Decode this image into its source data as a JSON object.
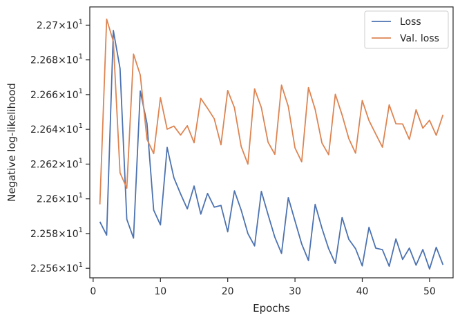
{
  "chart_data": {
    "type": "line",
    "xlabel": "Epochs",
    "ylabel": "Negative log-likelihood",
    "xlim": [
      -0.5,
      53.5
    ],
    "ylim": [
      22.5545,
      22.7105
    ],
    "xticks": [
      0,
      10,
      20,
      30,
      40,
      50
    ],
    "yticks": [
      {
        "value": 22.56,
        "mantissa": "2.256",
        "exponent": "1"
      },
      {
        "value": 22.58,
        "mantissa": "2.258",
        "exponent": "1"
      },
      {
        "value": 22.6,
        "mantissa": "2.26",
        "exponent": "1"
      },
      {
        "value": 22.62,
        "mantissa": "2.262",
        "exponent": "1"
      },
      {
        "value": 22.64,
        "mantissa": "2.264",
        "exponent": "1"
      },
      {
        "value": 22.66,
        "mantissa": "2.266",
        "exponent": "1"
      },
      {
        "value": 22.68,
        "mantissa": "2.268",
        "exponent": "1"
      },
      {
        "value": 22.7,
        "mantissa": "2.27",
        "exponent": "1"
      }
    ],
    "y_tick_multiplier": "×10",
    "grid": false,
    "legend_position": "top-right",
    "series": [
      {
        "name": "Loss",
        "color": "#4c72b0",
        "x": [
          1,
          2,
          3,
          4,
          5,
          6,
          7,
          8,
          9,
          10,
          11,
          12,
          13,
          14,
          15,
          16,
          17,
          18,
          19,
          20,
          21,
          22,
          23,
          24,
          25,
          26,
          27,
          28,
          29,
          30,
          31,
          32,
          33,
          34,
          35,
          36,
          37,
          38,
          39,
          40,
          41,
          42,
          43,
          44,
          45,
          46,
          47,
          48,
          49,
          50,
          51,
          52
        ],
        "y": [
          22.5868,
          22.5791,
          22.6969,
          22.6751,
          22.5882,
          22.5774,
          22.6621,
          22.6434,
          22.5935,
          22.585,
          22.6296,
          22.6121,
          22.6028,
          22.5942,
          22.6074,
          22.5912,
          22.6031,
          22.5952,
          22.5962,
          22.581,
          22.6046,
          22.5935,
          22.58,
          22.5729,
          22.6043,
          22.5909,
          22.5779,
          22.5686,
          22.6007,
          22.5873,
          22.574,
          22.5645,
          22.5968,
          22.5831,
          22.5713,
          22.5628,
          22.5893,
          22.5767,
          22.5713,
          22.5614,
          22.5836,
          22.5716,
          22.5707,
          22.5612,
          22.5769,
          22.5651,
          22.5716,
          22.5618,
          22.5708,
          22.5596,
          22.5721,
          22.562
        ]
      },
      {
        "name": "Val. loss",
        "color": "#dd8452",
        "x": [
          1,
          2,
          3,
          4,
          5,
          6,
          7,
          8,
          9,
          10,
          11,
          12,
          13,
          14,
          15,
          16,
          17,
          18,
          19,
          20,
          21,
          22,
          23,
          24,
          25,
          26,
          27,
          28,
          29,
          30,
          31,
          32,
          33,
          34,
          35,
          36,
          37,
          38,
          39,
          40,
          41,
          42,
          43,
          44,
          45,
          46,
          47,
          48,
          49,
          50,
          51,
          52
        ],
        "y": [
          22.5968,
          22.7035,
          22.6906,
          22.615,
          22.6061,
          22.6833,
          22.6713,
          22.6343,
          22.626,
          22.6583,
          22.6401,
          22.6419,
          22.6367,
          22.6421,
          22.6323,
          22.6578,
          22.6521,
          22.6461,
          22.6311,
          22.6624,
          22.6525,
          22.6301,
          22.62,
          22.6633,
          22.6525,
          22.6326,
          22.6256,
          22.6655,
          22.6532,
          22.6293,
          22.6213,
          22.6641,
          22.6515,
          22.6322,
          22.6254,
          22.6602,
          22.6483,
          22.6347,
          22.6263,
          22.6566,
          22.6451,
          22.6373,
          22.6297,
          22.6541,
          22.6432,
          22.6431,
          22.6342,
          22.6513,
          22.6407,
          22.6452,
          22.6366,
          22.6484
        ]
      }
    ]
  }
}
